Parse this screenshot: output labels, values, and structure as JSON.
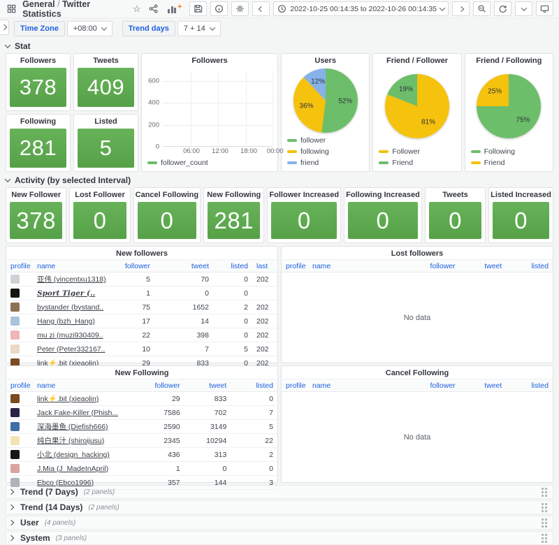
{
  "colors": {
    "stat_green": "#5CA84E",
    "pie_green": "#6CBE6B",
    "pie_yellow": "#F5C20D",
    "pie_blue": "#87B2E8",
    "link_blue": "#1F62E0"
  },
  "nav": {
    "folder": "General",
    "separator": "/",
    "title": "Twitter Statistics",
    "time_range": "2022-10-25 00:14:35 to 2022-10-26 00:14:35"
  },
  "variables": {
    "time_zone_label": "Time Zone",
    "time_zone_value": "+08:00",
    "trend_days_label": "Trend days",
    "trend_days_value": "7 + 14"
  },
  "sections": {
    "stat": "Stat",
    "activity": "Activity (by selected Interval)"
  },
  "stats": [
    {
      "title": "Followers",
      "value": "378"
    },
    {
      "title": "Tweets",
      "value": "409"
    },
    {
      "title": "Following",
      "value": "281"
    },
    {
      "title": "Listed",
      "value": "5"
    }
  ],
  "activity_stats": [
    {
      "title": "New Follower",
      "value": "378"
    },
    {
      "title": "Lost Follower",
      "value": "0"
    },
    {
      "title": "Cancel Following",
      "value": "0"
    },
    {
      "title": "New Following",
      "value": "281"
    },
    {
      "title": "Follower Increased",
      "value": "0"
    },
    {
      "title": "Following Increased",
      "value": "0"
    },
    {
      "title": "Tweets",
      "value": "0"
    },
    {
      "title": "Listed Increased",
      "value": "0"
    }
  ],
  "chart_data": [
    {
      "type": "line",
      "title": "Followers",
      "series": [
        {
          "name": "follower_count",
          "values": []
        }
      ],
      "x_ticks": [
        "06:00",
        "12:00",
        "18:00",
        "00:00"
      ],
      "y_ticks": [
        "0",
        "200",
        "400",
        "600"
      ],
      "ylim": [
        0,
        700
      ],
      "grid": true,
      "legend_position": "bottom",
      "color": "#6CBE6B"
    },
    {
      "type": "pie",
      "title": "Users",
      "legend_position": "bottom",
      "slices": [
        {
          "label": "follower",
          "value": 52,
          "pct": "52%",
          "color": "#6CBE6B"
        },
        {
          "label": "following",
          "value": 36,
          "pct": "36%",
          "color": "#F5C20D"
        },
        {
          "label": "friend",
          "value": 12,
          "pct": "12%",
          "color": "#87B2E8"
        }
      ]
    },
    {
      "type": "pie",
      "title": "Friend / Follower",
      "legend_position": "bottom",
      "slices": [
        {
          "label": "Follower",
          "value": 81,
          "pct": "81%",
          "color": "#F5C20D"
        },
        {
          "label": "Friend",
          "value": 19,
          "pct": "19%",
          "color": "#6CBE6B"
        }
      ]
    },
    {
      "type": "pie",
      "title": "Friend / Following",
      "legend_position": "bottom",
      "slices": [
        {
          "label": "Following",
          "value": 75,
          "pct": "75%",
          "color": "#6CBE6B"
        },
        {
          "label": "Friend",
          "value": 25,
          "pct": "25%",
          "color": "#F5C20D"
        }
      ]
    }
  ],
  "tables": {
    "new_followers": {
      "title": "New followers",
      "columns": [
        {
          "key": "avatar",
          "label": "profile",
          "align": "left"
        },
        {
          "key": "name",
          "label": "name",
          "align": "left"
        },
        {
          "key": "follower",
          "label": "follower",
          "align": "right"
        },
        {
          "key": "tweet",
          "label": "tweet",
          "align": "right"
        },
        {
          "key": "listed",
          "label": "listed",
          "align": "right"
        },
        {
          "key": "last",
          "label": "last",
          "align": "left"
        }
      ],
      "rows": [
        {
          "avatar": "#cdd2d7",
          "name": "亚伟 (vincentxu1318)",
          "follower": "5",
          "tweet": "70",
          "listed": "0",
          "last": "202"
        },
        {
          "avatar": "#15150f",
          "name": "Sport Tiger (..",
          "follower": "1",
          "tweet": "0",
          "listed": "0",
          "last": "",
          "script": true
        },
        {
          "avatar": "#8d7055",
          "name": "bystander (bystand..",
          "follower": "75",
          "tweet": "1652",
          "listed": "2",
          "last": "202"
        },
        {
          "avatar": "#a8c4da",
          "name": "Hang (bzh_Hang)",
          "follower": "17",
          "tweet": "14",
          "listed": "0",
          "last": "202"
        },
        {
          "avatar": "#efb6ba",
          "name": "mu zi (muzi930409..",
          "follower": "22",
          "tweet": "398",
          "listed": "0",
          "last": "202"
        },
        {
          "avatar": "#ead9c3",
          "name": "Peter (Peter332167..",
          "follower": "10",
          "tweet": "7",
          "listed": "5",
          "last": "202"
        },
        {
          "avatar": "#7a4a22",
          "name": "link⚡.bit (xieaolin)",
          "follower": "29",
          "tweet": "833",
          "listed": "0",
          "last": "202"
        }
      ]
    },
    "lost_followers": {
      "title": "Lost followers",
      "columns": [
        {
          "key": "avatar",
          "label": "profile",
          "align": "left"
        },
        {
          "key": "name",
          "label": "name",
          "align": "left"
        },
        {
          "key": "follower",
          "label": "follower",
          "align": "right"
        },
        {
          "key": "tweet",
          "label": "tweet",
          "align": "right"
        },
        {
          "key": "listed",
          "label": "listed",
          "align": "right"
        }
      ],
      "rows": [],
      "no_data": "No data"
    },
    "new_following": {
      "title": "New Following",
      "columns": [
        {
          "key": "avatar",
          "label": "profile",
          "align": "left"
        },
        {
          "key": "name",
          "label": "name",
          "align": "left"
        },
        {
          "key": "follower",
          "label": "follower",
          "align": "right"
        },
        {
          "key": "tweet",
          "label": "tweet",
          "align": "right"
        },
        {
          "key": "listed",
          "label": "listed",
          "align": "right"
        }
      ],
      "rows": [
        {
          "avatar": "#7a4a22",
          "name": "link⚡.bit (xieaolin)",
          "follower": "29",
          "tweet": "833",
          "listed": "0"
        },
        {
          "avatar": "#2d2344",
          "name": "Jack Fake-Killer (Phish...",
          "follower": "7586",
          "tweet": "702",
          "listed": "7"
        },
        {
          "avatar": "#3f6fa6",
          "name": "深海墨鱼 (Diefish666)",
          "follower": "2590",
          "tweet": "3149",
          "listed": "5"
        },
        {
          "avatar": "#f2e4b5",
          "name": "纯白果汁 (shiroijusu)",
          "follower": "2345",
          "tweet": "10294",
          "listed": "22"
        },
        {
          "avatar": "#17181a",
          "name": "小北 (design_hacking)",
          "follower": "436",
          "tweet": "313",
          "listed": "2"
        },
        {
          "avatar": "#d9a3a0",
          "name": "J.Mia (J_MadeInApril)",
          "follower": "1",
          "tweet": "0",
          "listed": "0"
        },
        {
          "avatar": "#aeb3b8",
          "name": "Ebco (Ebco1996)",
          "follower": "357",
          "tweet": "144",
          "listed": "3"
        }
      ]
    },
    "cancel_following": {
      "title": "Cancel Following",
      "columns": [
        {
          "key": "avatar",
          "label": "profile",
          "align": "left"
        },
        {
          "key": "name",
          "label": "name",
          "align": "left"
        },
        {
          "key": "follower",
          "label": "follower",
          "align": "right"
        },
        {
          "key": "tweet",
          "label": "tweet",
          "align": "right"
        },
        {
          "key": "listed",
          "label": "listed",
          "align": "right"
        }
      ],
      "rows": [],
      "no_data": "No data"
    }
  },
  "collapsed_rows": [
    {
      "title": "Trend (7 Days)",
      "meta": "(2 panels)"
    },
    {
      "title": "Trend (14 Days)",
      "meta": "(2 panels)"
    },
    {
      "title": "User",
      "meta": "(4 panels)"
    },
    {
      "title": "System",
      "meta": "(3 panels)"
    }
  ]
}
